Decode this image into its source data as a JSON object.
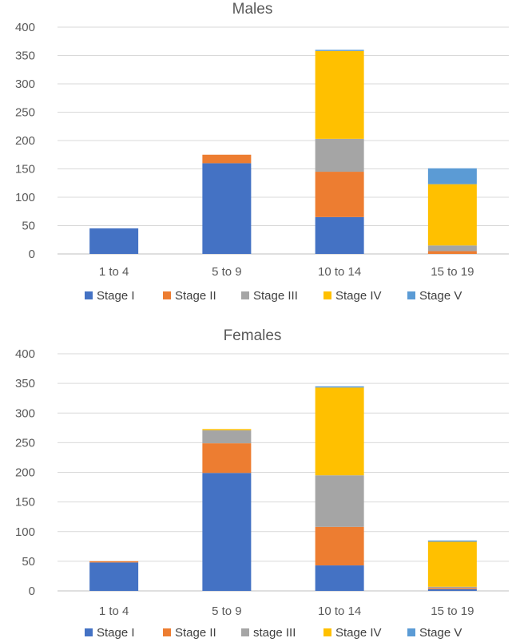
{
  "chart_data": [
    {
      "type": "bar",
      "stacked": true,
      "title": "Males",
      "categories": [
        "1 to 4",
        "5 to 9",
        "10 to 14",
        "15 to 19"
      ],
      "ylim": [
        0,
        400
      ],
      "yticks": [
        0,
        50,
        100,
        150,
        200,
        250,
        300,
        350,
        400
      ],
      "grid": true,
      "legend_position": "bottom",
      "series": [
        {
          "name": "Stage I",
          "color": "#4472c4",
          "values": [
            45,
            160,
            65,
            0
          ]
        },
        {
          "name": "Stage II",
          "color": "#ed7d31",
          "values": [
            0,
            15,
            80,
            5
          ]
        },
        {
          "name": "Stage III",
          "color": "#a5a5a5",
          "values": [
            0,
            0,
            58,
            10
          ]
        },
        {
          "name": "Stage IV",
          "color": "#ffc000",
          "values": [
            0,
            0,
            155,
            108
          ]
        },
        {
          "name": "Stage V",
          "color": "#5b9bd5",
          "values": [
            0,
            0,
            2,
            28
          ]
        }
      ]
    },
    {
      "type": "bar",
      "stacked": true,
      "title": "Females",
      "categories": [
        "1 to 4",
        "5 to 9",
        "10 to 14",
        "15 to 19"
      ],
      "ylim": [
        0,
        400
      ],
      "yticks": [
        0,
        50,
        100,
        150,
        200,
        250,
        300,
        350,
        400
      ],
      "grid": true,
      "legend_position": "bottom",
      "series": [
        {
          "name": "Stage I",
          "color": "#4472c4",
          "values": [
            48,
            199,
            43,
            3
          ]
        },
        {
          "name": "Stage II",
          "color": "#ed7d31",
          "values": [
            2,
            50,
            65,
            2
          ]
        },
        {
          "name": "stage III",
          "color": "#a5a5a5",
          "values": [
            0,
            22,
            87,
            2
          ]
        },
        {
          "name": "Stage IV",
          "color": "#ffc000",
          "values": [
            0,
            2,
            148,
            76
          ]
        },
        {
          "name": "Stage V",
          "color": "#5b9bd5",
          "values": [
            0,
            0,
            2,
            2
          ]
        }
      ]
    }
  ]
}
